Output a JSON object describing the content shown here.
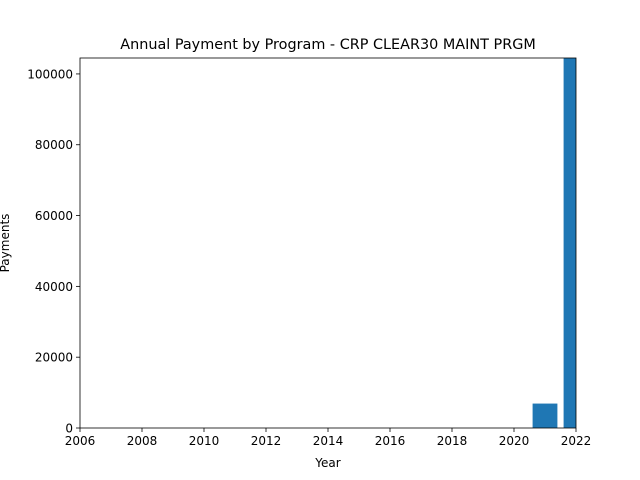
{
  "chart_data": {
    "type": "bar",
    "title": "Annual Payment by Program - CRP CLEAR30 MAINT PRGM",
    "xlabel": "Year",
    "ylabel": "Payments",
    "x": [
      2021,
      2022
    ],
    "values": [
      6900,
      104500
    ],
    "xlim": [
      2006,
      2022
    ],
    "ylim": [
      0,
      104500
    ],
    "xticks": [
      2006,
      2008,
      2010,
      2012,
      2014,
      2016,
      2018,
      2020,
      2022
    ],
    "yticks": [
      0,
      20000,
      40000,
      60000,
      80000,
      100000
    ],
    "bar_width": 0.8,
    "color": "#1f77b4",
    "grid": false,
    "legend": false
  }
}
